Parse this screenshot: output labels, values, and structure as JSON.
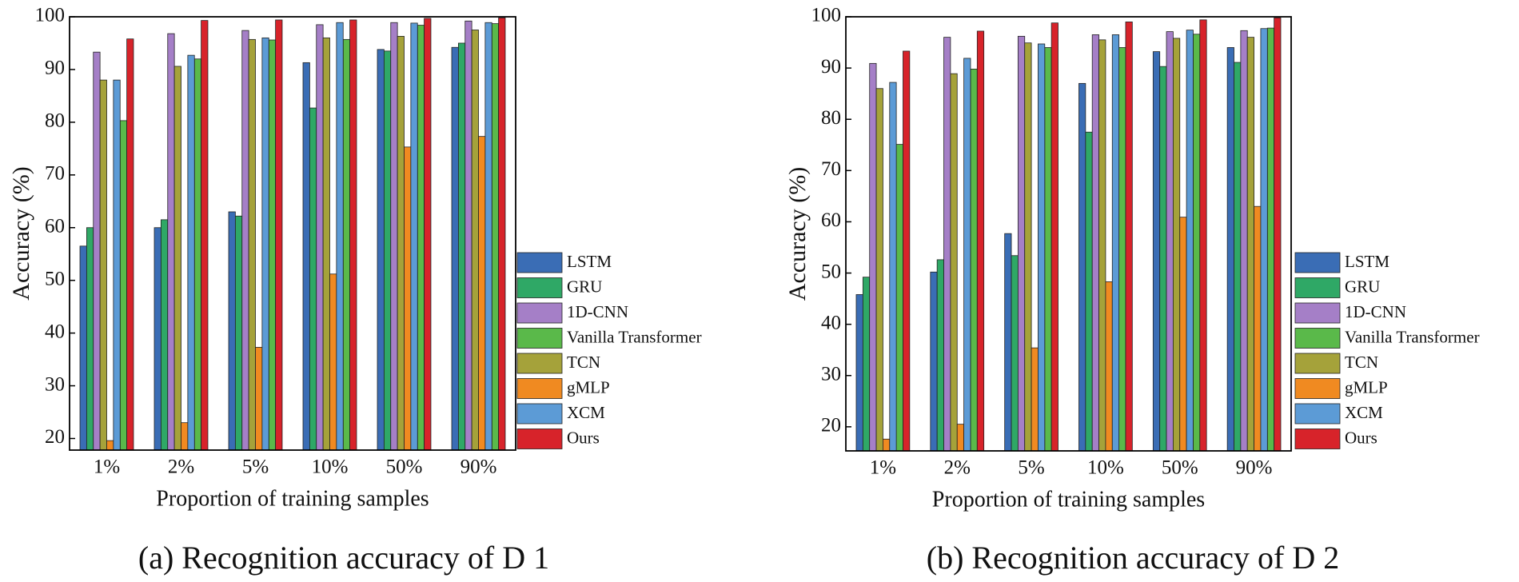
{
  "chart_data": [
    {
      "type": "bar",
      "caption": "(a) Recognition accuracy of D 1",
      "xlabel": "Proportion of training samples",
      "ylabel": "Accuracy (%)",
      "categories": [
        "1%",
        "2%",
        "5%",
        "10%",
        "50%",
        "90%"
      ],
      "ylim": [
        17.8,
        100
      ],
      "yticks": [
        20,
        30,
        40,
        50,
        60,
        70,
        80,
        90,
        100
      ],
      "series": [
        {
          "name": "LSTM",
          "color": "#3a6db5",
          "values": [
            56.5,
            60,
            63,
            91.3,
            93.8,
            94.2
          ]
        },
        {
          "name": "GRU",
          "color": "#2fa866",
          "values": [
            60,
            61.5,
            62.2,
            82.7,
            93.5,
            95
          ]
        },
        {
          "name": "1D-CNN",
          "color": "#a57fc7",
          "values": [
            93.3,
            96.8,
            97.4,
            98.5,
            98.9,
            99.2
          ]
        },
        {
          "name": "Vanilla Transformer",
          "color": "#5ab94a",
          "values": [
            80.3,
            92,
            95.6,
            95.7,
            98.4,
            98.7
          ]
        },
        {
          "name": "TCN",
          "color": "#a5a23a",
          "values": [
            88,
            90.6,
            95.7,
            96,
            96.3,
            97.5
          ]
        },
        {
          "name": "gMLP",
          "color": "#f08a21",
          "values": [
            19.6,
            23,
            37.3,
            51.2,
            75.3,
            77.3
          ]
        },
        {
          "name": "XCM",
          "color": "#5c9bd6",
          "values": [
            88,
            92.7,
            96,
            98.9,
            98.8,
            98.9
          ]
        },
        {
          "name": "Ours",
          "color": "#d7232a",
          "values": [
            95.8,
            99.3,
            99.4,
            99.4,
            99.7,
            99.8
          ]
        }
      ]
    },
    {
      "type": "bar",
      "caption": "(b) Recognition accuracy of D 2",
      "xlabel": "Proportion of training samples",
      "ylabel": "Accuracy (%)",
      "categories": [
        "1%",
        "2%",
        "5%",
        "10%",
        "50%",
        "90%"
      ],
      "ylim": [
        15.3,
        100
      ],
      "yticks": [
        20,
        30,
        40,
        50,
        60,
        70,
        80,
        90,
        100
      ],
      "series": [
        {
          "name": "LSTM",
          "color": "#3a6db5",
          "values": [
            45.8,
            50.2,
            57.7,
            87,
            93.2,
            94
          ]
        },
        {
          "name": "GRU",
          "color": "#2fa866",
          "values": [
            49.2,
            52.6,
            53.4,
            77.5,
            90.3,
            91.1
          ]
        },
        {
          "name": "1D-CNN",
          "color": "#a57fc7",
          "values": [
            90.9,
            96,
            96.2,
            96.5,
            97.1,
            97.3
          ]
        },
        {
          "name": "Vanilla Transformer",
          "color": "#5ab94a",
          "values": [
            75.1,
            89.8,
            94,
            94,
            96.6,
            97.8
          ]
        },
        {
          "name": "TCN",
          "color": "#a5a23a",
          "values": [
            86,
            88.9,
            94.9,
            95.5,
            95.8,
            96
          ]
        },
        {
          "name": "gMLP",
          "color": "#f08a21",
          "values": [
            17.6,
            20.5,
            35.4,
            48.3,
            60.9,
            63
          ]
        },
        {
          "name": "XCM",
          "color": "#5c9bd6",
          "values": [
            87.2,
            91.9,
            94.7,
            96.5,
            97.4,
            97.7
          ]
        },
        {
          "name": "Ours",
          "color": "#d7232a",
          "values": [
            93.3,
            97.2,
            98.8,
            99,
            99.4,
            99.8
          ]
        }
      ]
    }
  ]
}
